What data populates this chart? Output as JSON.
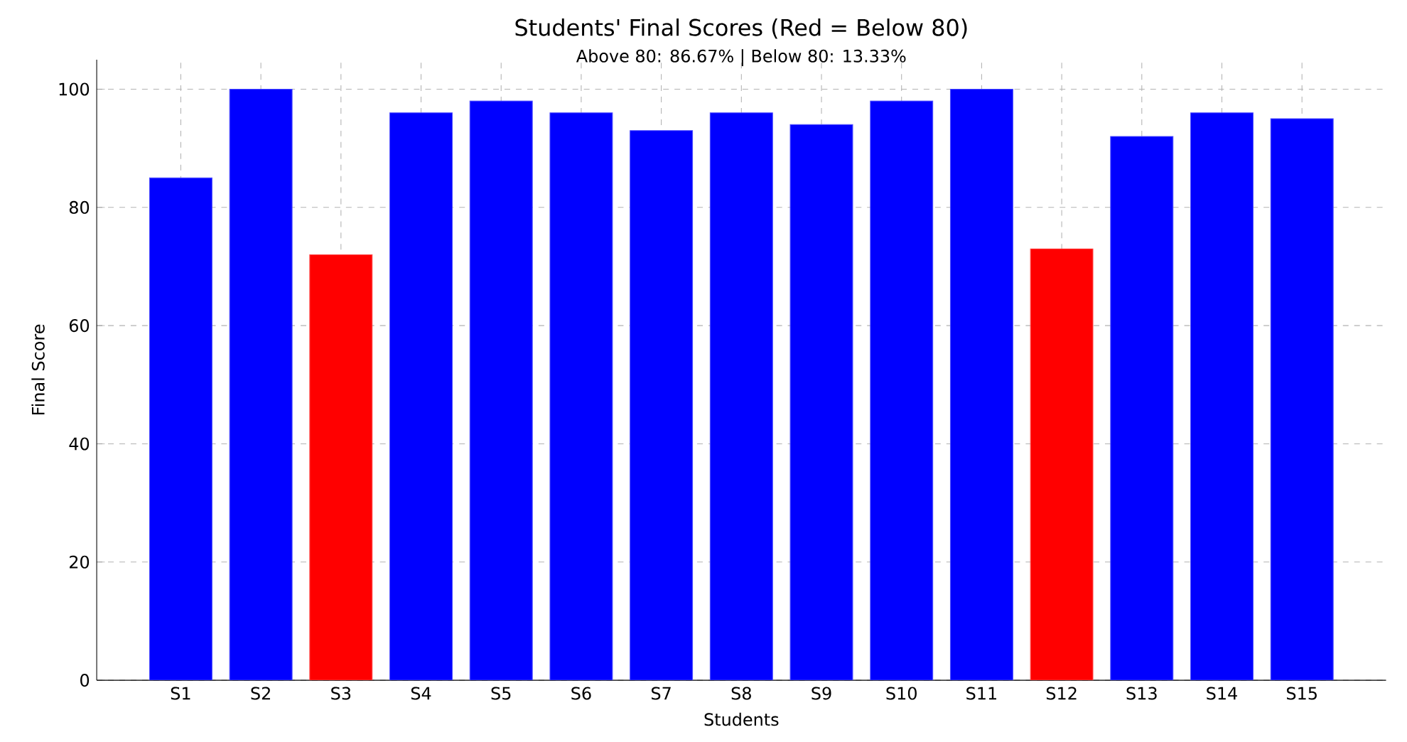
{
  "chart_data": {
    "type": "bar",
    "title": "Students' Final Scores (Red = Below 80)",
    "subtitle": "Above 80: 86.67%   |   Below 80: 13.33%",
    "xlabel": "Students",
    "ylabel": "Final Score",
    "categories": [
      "S1",
      "S2",
      "S3",
      "S4",
      "S5",
      "S6",
      "S7",
      "S8",
      "S9",
      "S10",
      "S11",
      "S12",
      "S13",
      "S14",
      "S15"
    ],
    "values": [
      85,
      100,
      72,
      96,
      98,
      96,
      93,
      96,
      94,
      98,
      100,
      73,
      92,
      96,
      95
    ],
    "colors": [
      "#0000ff",
      "#0000ff",
      "#ff0000",
      "#0000ff",
      "#0000ff",
      "#0000ff",
      "#0000ff",
      "#0000ff",
      "#0000ff",
      "#0000ff",
      "#0000ff",
      "#ff0000",
      "#0000ff",
      "#0000ff",
      "#0000ff"
    ],
    "ylim": [
      0,
      105
    ],
    "yticks": [
      0,
      20,
      40,
      60,
      80,
      100
    ],
    "grid": true
  }
}
